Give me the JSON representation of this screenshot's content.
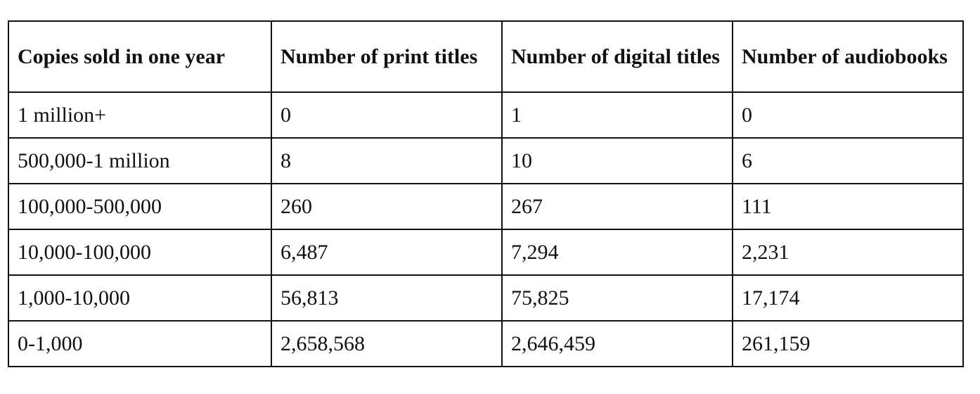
{
  "table": {
    "header": [
      "Copies sold in one year",
      "Number of print titles",
      "Number of digital titles",
      "Number of audiobooks"
    ],
    "rows": [
      [
        "1 million+",
        "0",
        "1",
        "0"
      ],
      [
        "500,000-1 million",
        "8",
        "10",
        "6"
      ],
      [
        "100,000-500,000",
        "260",
        "267",
        "111"
      ],
      [
        "10,000-100,000",
        "6,487",
        "7,294",
        "2,231"
      ],
      [
        "1,000-10,000",
        "56,813",
        "75,825",
        "17,174"
      ],
      [
        "0-1,000",
        "2,658,568",
        "2,646,459",
        "261,159"
      ]
    ]
  }
}
